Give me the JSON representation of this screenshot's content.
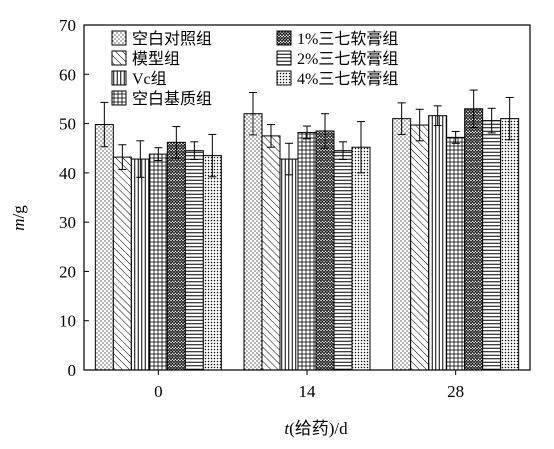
{
  "chart_data": {
    "type": "bar",
    "title": "",
    "xlabel_parts": {
      "var": "t",
      "rest": "(给药)/d"
    },
    "ylabel_parts": {
      "var": "m",
      "rest": "/g"
    },
    "categories": [
      "0",
      "14",
      "28"
    ],
    "ylim": [
      0,
      70
    ],
    "yticks": [
      "0",
      "10",
      "20",
      "30",
      "40",
      "50",
      "60",
      "70"
    ],
    "grid": false,
    "legend_position": "top-left",
    "series": [
      {
        "name": "空白对照组",
        "pattern": "dots",
        "values": [
          49.8,
          52.0,
          51.0
        ],
        "errors": [
          4.5,
          4.3,
          3.2
        ]
      },
      {
        "name": "模型组",
        "pattern": "diag",
        "values": [
          43.2,
          47.5,
          49.7
        ],
        "errors": [
          2.5,
          2.3,
          3.2
        ]
      },
      {
        "name": "Vc组",
        "pattern": "vlines",
        "values": [
          42.8,
          42.8,
          51.6
        ],
        "errors": [
          3.7,
          3.2,
          2.0
        ]
      },
      {
        "name": "空白基质组",
        "pattern": "grid",
        "values": [
          43.8,
          48.2,
          47.2
        ],
        "errors": [
          1.3,
          1.3,
          1.2
        ]
      },
      {
        "name": "1%三七软膏组",
        "pattern": "zigzag",
        "values": [
          46.2,
          48.5,
          53.0
        ],
        "errors": [
          3.2,
          3.5,
          3.8
        ]
      },
      {
        "name": "2%三七软膏组",
        "pattern": "hlines",
        "values": [
          44.5,
          44.5,
          50.6
        ],
        "errors": [
          1.8,
          1.8,
          2.5
        ]
      },
      {
        "name": "4%三七软膏组",
        "pattern": "densedots",
        "values": [
          43.5,
          45.2,
          51.0
        ],
        "errors": [
          4.3,
          5.2,
          4.3
        ]
      }
    ]
  }
}
